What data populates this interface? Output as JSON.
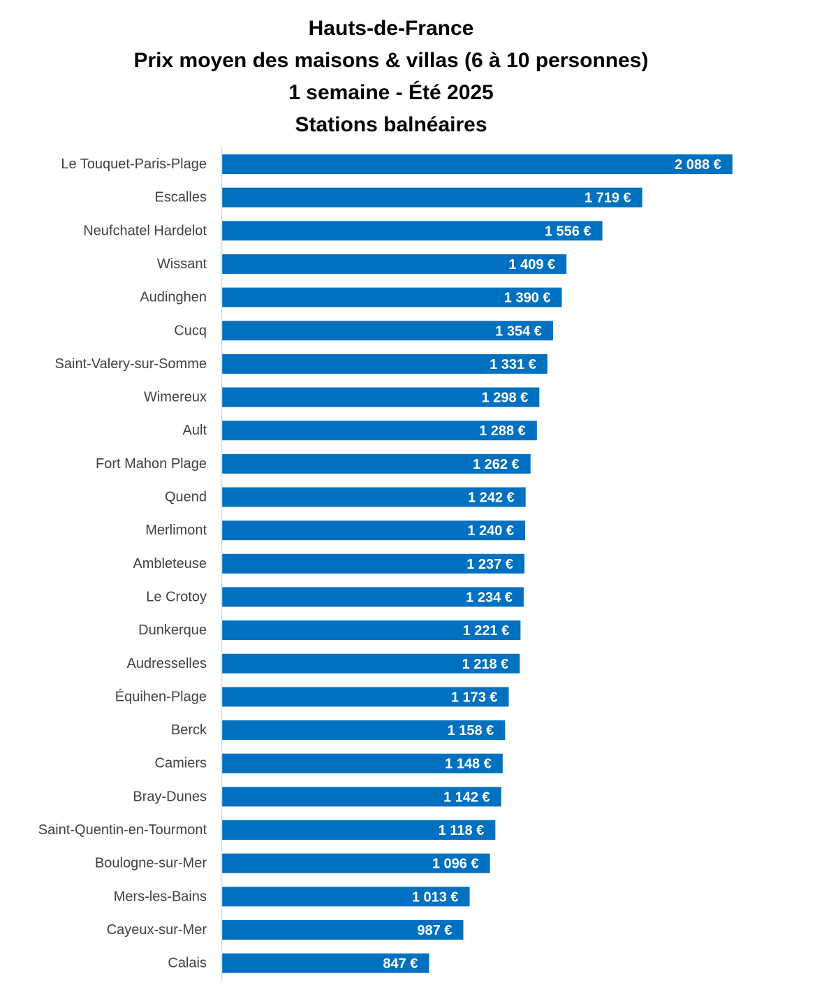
{
  "chart_data": {
    "type": "bar",
    "orientation": "horizontal",
    "title": [
      "Hauts-de-France",
      "Prix moyen des maisons & villas (6 à 10 personnes)",
      "1 semaine - Été 2025",
      "Stations balnéaires"
    ],
    "xlabel": "",
    "ylabel": "",
    "bar_color": "#0070C0",
    "value_label_color": "#FFFFFF",
    "category_label_color": "#404040",
    "axis_line_color": "#D9D9D9",
    "grid": false,
    "legend": "none",
    "xlim": [
      0,
      2500
    ],
    "categories": [
      "Le Touquet-Paris-Plage",
      "Escalles",
      "Neufchatel Hardelot",
      "Wissant",
      "Audinghen",
      "Cucq",
      "Saint-Valery-sur-Somme",
      "Wimereux",
      "Ault",
      "Fort Mahon Plage",
      "Quend",
      "Merlimont",
      "Ambleteuse",
      "Le Crotoy",
      "Dunkerque",
      "Audresselles",
      "Équihen-Plage",
      "Berck",
      "Camiers",
      "Bray-Dunes",
      "Saint-Quentin-en-Tourmont",
      "Boulogne-sur-Mer",
      "Mers-les-Bains",
      "Cayeux-sur-Mer",
      "Calais"
    ],
    "values": [
      2088,
      1719,
      1556,
      1409,
      1390,
      1354,
      1331,
      1298,
      1288,
      1262,
      1242,
      1240,
      1237,
      1234,
      1221,
      1218,
      1173,
      1158,
      1148,
      1142,
      1118,
      1096,
      1013,
      987,
      847
    ],
    "value_labels": [
      "2 088 €",
      "1 719 €",
      "1 556 €",
      "1 409 €",
      "1 390 €",
      "1 354 €",
      "1 331 €",
      "1 298 €",
      "1 288 €",
      "1 262 €",
      "1 242 €",
      "1 240 €",
      "1 237 €",
      "1 234 €",
      "1 221 €",
      "1 218 €",
      "1 173 €",
      "1 158 €",
      "1 148 €",
      "1 142 €",
      "1 118 €",
      "1 096 €",
      "1 013 €",
      "987 €",
      "847 €"
    ]
  }
}
